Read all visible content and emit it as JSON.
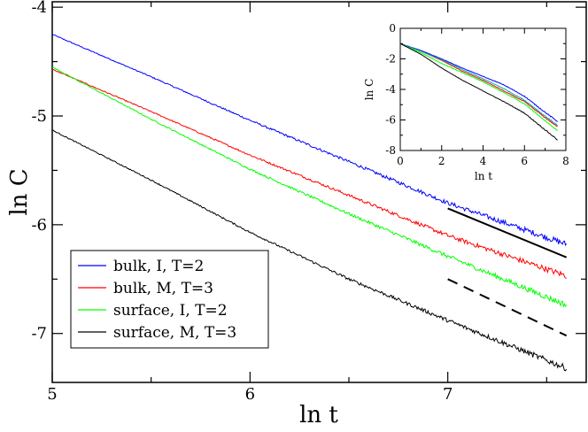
{
  "chart_data": [
    {
      "type": "line",
      "title": "",
      "xlabel": "ln t",
      "ylabel": "ln C",
      "xlim": [
        5,
        7.7
      ],
      "ylim": [
        -7.45,
        -3.95
      ],
      "xticks": [
        5,
        6,
        7
      ],
      "yticks": [
        -4,
        -5,
        -6,
        -7
      ],
      "legend_position": "lower-left",
      "series": [
        {
          "name": "bulk, I, T=2",
          "color": "#0000ff",
          "x": [
            5.0,
            5.5,
            6.0,
            6.5,
            7.0,
            7.6
          ],
          "y": [
            -4.25,
            -4.64,
            -5.04,
            -5.42,
            -5.8,
            -6.18
          ]
        },
        {
          "name": "bulk, M, T=3",
          "color": "#ff0000",
          "x": [
            5.0,
            5.5,
            6.0,
            6.5,
            7.0,
            7.6
          ],
          "y": [
            -4.57,
            -4.96,
            -5.36,
            -5.73,
            -6.1,
            -6.47
          ]
        },
        {
          "name": "surface, I, T=2",
          "color": "#00ff00",
          "x": [
            5.0,
            5.5,
            6.0,
            6.5,
            7.0,
            7.6
          ],
          "y": [
            -4.55,
            -5.03,
            -5.49,
            -5.9,
            -6.29,
            -6.74
          ]
        },
        {
          "name": "surface, M, T=3",
          "color": "#000000",
          "x": [
            5.0,
            5.5,
            6.0,
            6.5,
            7.0,
            7.6
          ],
          "y": [
            -5.13,
            -5.59,
            -6.07,
            -6.5,
            -6.88,
            -7.32
          ]
        }
      ],
      "reference_lines": [
        {
          "style": "solid",
          "color": "#000000",
          "x": [
            7.0,
            7.6
          ],
          "y": [
            -5.85,
            -6.3
          ]
        },
        {
          "style": "dashed",
          "color": "#000000",
          "x": [
            7.0,
            7.6
          ],
          "y": [
            -6.5,
            -7.02
          ]
        }
      ]
    },
    {
      "type": "line",
      "title": "",
      "xlabel": "ln t",
      "ylabel": "ln C",
      "xlim": [
        0,
        8
      ],
      "ylim": [
        -8,
        0
      ],
      "xticks": [
        0,
        2,
        4,
        6,
        8
      ],
      "yticks": [
        0,
        -2,
        -4,
        -6,
        -8
      ],
      "series": [
        {
          "color": "#0000ff",
          "x": [
            0,
            1,
            2,
            3,
            4,
            5,
            6,
            7,
            7.6
          ],
          "y": [
            -1.0,
            -1.45,
            -2.0,
            -2.6,
            -3.15,
            -3.7,
            -4.45,
            -5.5,
            -6.1
          ]
        },
        {
          "color": "#ff0000",
          "x": [
            0,
            1,
            2,
            3,
            4,
            5,
            6,
            7,
            7.6
          ],
          "y": [
            -1.0,
            -1.5,
            -2.1,
            -2.8,
            -3.4,
            -4.1,
            -4.8,
            -5.85,
            -6.45
          ]
        },
        {
          "color": "#00ff00",
          "x": [
            0,
            1,
            2,
            3,
            4,
            5,
            6,
            7,
            7.6
          ],
          "y": [
            -1.0,
            -1.6,
            -2.3,
            -2.9,
            -3.5,
            -4.2,
            -4.95,
            -6.05,
            -6.7
          ]
        },
        {
          "color": "#00aaaa",
          "x": [
            0,
            1,
            2,
            3,
            4,
            5,
            6,
            7,
            7.6
          ],
          "y": [
            -1.0,
            -1.5,
            -2.05,
            -2.7,
            -3.3,
            -3.95,
            -4.7,
            -5.75,
            -6.35
          ]
        },
        {
          "color": "#000000",
          "x": [
            0,
            1,
            2,
            3,
            4,
            5,
            6,
            7,
            7.6
          ],
          "y": [
            -1.0,
            -1.7,
            -2.6,
            -3.4,
            -4.1,
            -4.8,
            -5.55,
            -6.65,
            -7.3
          ]
        }
      ]
    }
  ]
}
